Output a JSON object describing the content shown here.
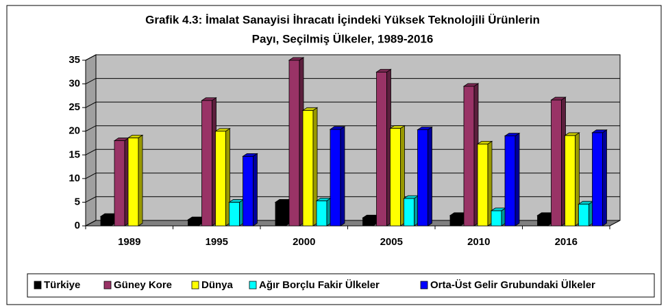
{
  "chart_data": {
    "type": "bar3d",
    "title": [
      "Grafik 4.3: İmalat Sanayisi İhracatı İçindeki Yüksek Teknolojili Ürünlerin",
      "Payı, Seçilmiş Ülkeler, 1989-2016"
    ],
    "categories": [
      "1989",
      "1995",
      "2000",
      "2005",
      "2010",
      "2016"
    ],
    "series": [
      {
        "name": "Türkiye",
        "color": "#000000",
        "values": [
          2,
          1.3,
          5,
          1.7,
          2.2,
          2.2
        ]
      },
      {
        "name": "Güney Kore",
        "color": "#993366",
        "values": [
          18,
          26.5,
          35,
          32.5,
          29.5,
          26.6
        ]
      },
      {
        "name": "Dünya",
        "color": "#ffff00",
        "values": [
          18.6,
          20,
          24.4,
          20.6,
          17.3,
          19.1
        ]
      },
      {
        "name": "Ağır Borçlu Fakir Ülkeler",
        "color": "#00ffff",
        "values": [
          null,
          5,
          5.3,
          5.8,
          3.2,
          4.6
        ]
      },
      {
        "name": "Orta-Üst Gelir Grubundaki Ülkeler",
        "color": "#0000ff",
        "values": [
          null,
          14.7,
          20.4,
          20.3,
          19,
          19.7
        ]
      }
    ],
    "ylim": [
      0,
      35
    ],
    "yticks": [
      0,
      5,
      10,
      15,
      20,
      25,
      30,
      35
    ],
    "grid": true,
    "legend": "bottom"
  }
}
